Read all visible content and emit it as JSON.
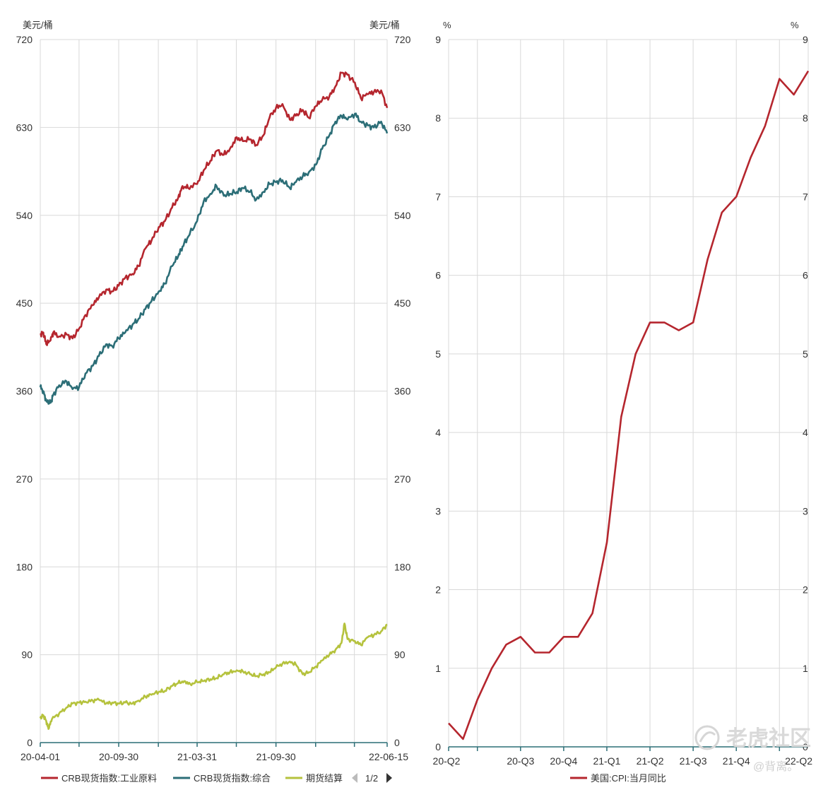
{
  "colors": {
    "industrial": "#b5262e",
    "composite": "#2c6e77",
    "futures": "#b5c23d",
    "cpi": "#b5262e",
    "grid": "#d9d9d9",
    "axis": "#2c6e77"
  },
  "pager": {
    "text": "1/2",
    "prev_icon": "triangle-left-icon",
    "next_icon": "triangle-right-icon"
  },
  "watermark": {
    "brand": "老虎社区",
    "handle": "@背离。"
  },
  "chart_data": [
    {
      "type": "line",
      "x_type": "date",
      "left_unit": "美元/桶",
      "right_unit": "美元/桶",
      "ylim": [
        0,
        720
      ],
      "y_ticks": [
        0,
        90,
        180,
        270,
        360,
        450,
        540,
        630,
        720
      ],
      "x_range": [
        "2020-04-01",
        "2022-06-15"
      ],
      "x_labels": [
        {
          "date": "2020-04-01",
          "label": "20-04-01"
        },
        {
          "date": "2020-09-30",
          "label": "20-09-30"
        },
        {
          "date": "2021-03-31",
          "label": "21-03-31"
        },
        {
          "date": "2021-09-30",
          "label": "21-09-30"
        },
        {
          "date": "2022-06-15",
          "label": "22-06-15"
        }
      ],
      "grid": true,
      "legend_position": "bottom",
      "series": [
        {
          "name": "CRB现货指数:工业原料",
          "color_key": "industrial",
          "points": [
            [
              "2020-04-01",
              418
            ],
            [
              "2020-04-08",
              420
            ],
            [
              "2020-04-15",
              408
            ],
            [
              "2020-04-25",
              412
            ],
            [
              "2020-05-01",
              420
            ],
            [
              "2020-05-15",
              416
            ],
            [
              "2020-06-01",
              418
            ],
            [
              "2020-06-15",
              414
            ],
            [
              "2020-06-30",
              424
            ],
            [
              "2020-07-15",
              438
            ],
            [
              "2020-08-01",
              448
            ],
            [
              "2020-08-15",
              456
            ],
            [
              "2020-09-01",
              464
            ],
            [
              "2020-09-15",
              462
            ],
            [
              "2020-09-30",
              468
            ],
            [
              "2020-10-15",
              476
            ],
            [
              "2020-11-01",
              480
            ],
            [
              "2020-11-15",
              488
            ],
            [
              "2020-12-01",
              506
            ],
            [
              "2020-12-15",
              514
            ],
            [
              "2021-01-01",
              528
            ],
            [
              "2021-01-15",
              534
            ],
            [
              "2021-02-01",
              548
            ],
            [
              "2021-02-15",
              558
            ],
            [
              "2021-02-25",
              570
            ],
            [
              "2021-03-10",
              568
            ],
            [
              "2021-03-31",
              572
            ],
            [
              "2021-04-15",
              586
            ],
            [
              "2021-05-01",
              596
            ],
            [
              "2021-05-15",
              606
            ],
            [
              "2021-06-01",
              602
            ],
            [
              "2021-06-15",
              608
            ],
            [
              "2021-07-01",
              620
            ],
            [
              "2021-07-15",
              616
            ],
            [
              "2021-08-01",
              618
            ],
            [
              "2021-08-15",
              612
            ],
            [
              "2021-09-01",
              622
            ],
            [
              "2021-09-15",
              640
            ],
            [
              "2021-09-30",
              650
            ],
            [
              "2021-10-15",
              654
            ],
            [
              "2021-11-01",
              638
            ],
            [
              "2021-11-15",
              642
            ],
            [
              "2021-12-01",
              648
            ],
            [
              "2021-12-15",
              640
            ],
            [
              "2022-01-01",
              652
            ],
            [
              "2022-01-15",
              658
            ],
            [
              "2022-02-01",
              662
            ],
            [
              "2022-02-15",
              672
            ],
            [
              "2022-03-01",
              686
            ],
            [
              "2022-03-15",
              684
            ],
            [
              "2022-04-01",
              676
            ],
            [
              "2022-04-15",
              660
            ],
            [
              "2022-05-01",
              664
            ],
            [
              "2022-05-15",
              666
            ],
            [
              "2022-06-01",
              668
            ],
            [
              "2022-06-15",
              650
            ]
          ]
        },
        {
          "name": "CRB现货指数:综合",
          "color_key": "composite",
          "points": [
            [
              "2020-04-01",
              364
            ],
            [
              "2020-04-08",
              360
            ],
            [
              "2020-04-15",
              350
            ],
            [
              "2020-04-25",
              348
            ],
            [
              "2020-05-01",
              356
            ],
            [
              "2020-05-15",
              366
            ],
            [
              "2020-06-01",
              370
            ],
            [
              "2020-06-15",
              362
            ],
            [
              "2020-06-30",
              364
            ],
            [
              "2020-07-15",
              378
            ],
            [
              "2020-08-01",
              386
            ],
            [
              "2020-08-15",
              396
            ],
            [
              "2020-09-01",
              408
            ],
            [
              "2020-09-15",
              406
            ],
            [
              "2020-09-30",
              414
            ],
            [
              "2020-10-15",
              420
            ],
            [
              "2020-11-01",
              428
            ],
            [
              "2020-11-15",
              434
            ],
            [
              "2020-12-01",
              444
            ],
            [
              "2020-12-15",
              452
            ],
            [
              "2021-01-01",
              462
            ],
            [
              "2021-01-15",
              470
            ],
            [
              "2021-02-01",
              488
            ],
            [
              "2021-02-15",
              498
            ],
            [
              "2021-02-25",
              508
            ],
            [
              "2021-03-10",
              518
            ],
            [
              "2021-03-31",
              534
            ],
            [
              "2021-04-15",
              554
            ],
            [
              "2021-05-01",
              562
            ],
            [
              "2021-05-15",
              570
            ],
            [
              "2021-06-01",
              560
            ],
            [
              "2021-06-15",
              562
            ],
            [
              "2021-07-01",
              564
            ],
            [
              "2021-07-15",
              568
            ],
            [
              "2021-08-01",
              564
            ],
            [
              "2021-08-15",
              556
            ],
            [
              "2021-09-01",
              564
            ],
            [
              "2021-09-15",
              572
            ],
            [
              "2021-09-30",
              574
            ],
            [
              "2021-10-15",
              576
            ],
            [
              "2021-11-01",
              568
            ],
            [
              "2021-11-15",
              574
            ],
            [
              "2021-12-01",
              580
            ],
            [
              "2021-12-15",
              584
            ],
            [
              "2022-01-01",
              592
            ],
            [
              "2022-01-15",
              608
            ],
            [
              "2022-02-01",
              622
            ],
            [
              "2022-02-15",
              636
            ],
            [
              "2022-03-01",
              642
            ],
            [
              "2022-03-15",
              638
            ],
            [
              "2022-04-01",
              644
            ],
            [
              "2022-04-15",
              636
            ],
            [
              "2022-05-01",
              632
            ],
            [
              "2022-05-15",
              630
            ],
            [
              "2022-06-01",
              636
            ],
            [
              "2022-06-15",
              624
            ]
          ]
        },
        {
          "name": "期货结算",
          "color_key": "futures",
          "points": [
            [
              "2020-04-01",
              25
            ],
            [
              "2020-04-08",
              28
            ],
            [
              "2020-04-15",
              22
            ],
            [
              "2020-04-20",
              14
            ],
            [
              "2020-04-28",
              24
            ],
            [
              "2020-05-15",
              30
            ],
            [
              "2020-06-01",
              36
            ],
            [
              "2020-06-15",
              40
            ],
            [
              "2020-07-01",
              41
            ],
            [
              "2020-07-15",
              42
            ],
            [
              "2020-08-01",
              43
            ],
            [
              "2020-08-15",
              44
            ],
            [
              "2020-09-01",
              40
            ],
            [
              "2020-09-15",
              41
            ],
            [
              "2020-09-30",
              40
            ],
            [
              "2020-10-15",
              41
            ],
            [
              "2020-11-01",
              40
            ],
            [
              "2020-11-15",
              43
            ],
            [
              "2020-12-01",
              47
            ],
            [
              "2020-12-15",
              49
            ],
            [
              "2021-01-01",
              52
            ],
            [
              "2021-01-15",
              53
            ],
            [
              "2021-02-01",
              58
            ],
            [
              "2021-02-15",
              61
            ],
            [
              "2021-03-01",
              63
            ],
            [
              "2021-03-15",
              60
            ],
            [
              "2021-03-31",
              62
            ],
            [
              "2021-04-15",
              63
            ],
            [
              "2021-05-01",
              65
            ],
            [
              "2021-05-15",
              66
            ],
            [
              "2021-06-01",
              70
            ],
            [
              "2021-06-15",
              72
            ],
            [
              "2021-07-01",
              74
            ],
            [
              "2021-07-15",
              73
            ],
            [
              "2021-08-01",
              70
            ],
            [
              "2021-08-15",
              68
            ],
            [
              "2021-09-01",
              70
            ],
            [
              "2021-09-15",
              72
            ],
            [
              "2021-09-30",
              77
            ],
            [
              "2021-10-15",
              81
            ],
            [
              "2021-11-01",
              83
            ],
            [
              "2021-11-15",
              80
            ],
            [
              "2021-12-01",
              70
            ],
            [
              "2021-12-15",
              72
            ],
            [
              "2022-01-01",
              78
            ],
            [
              "2022-01-15",
              84
            ],
            [
              "2022-02-01",
              90
            ],
            [
              "2022-02-15",
              95
            ],
            [
              "2022-03-01",
              102
            ],
            [
              "2022-03-08",
              122
            ],
            [
              "2022-03-15",
              106
            ],
            [
              "2022-04-01",
              104
            ],
            [
              "2022-04-15",
              100
            ],
            [
              "2022-05-01",
              108
            ],
            [
              "2022-05-15",
              110
            ],
            [
              "2022-06-01",
              114
            ],
            [
              "2022-06-15",
              121
            ]
          ]
        }
      ]
    },
    {
      "type": "line",
      "left_unit": "%",
      "right_unit": "%",
      "ylim": [
        0,
        9
      ],
      "y_ticks": [
        0,
        1,
        2,
        3,
        4,
        5,
        6,
        7,
        8,
        9
      ],
      "quarter_labels": [
        "20-Q2",
        "20-Q3",
        "20-Q4",
        "21-Q1",
        "21-Q2",
        "21-Q3",
        "21-Q4",
        "22-Q2"
      ],
      "grid": true,
      "legend_position": "bottom",
      "series": [
        {
          "name": "美国:CPI:当月同比",
          "color_key": "cpi",
          "x": [
            "2020-04",
            "2020-05",
            "2020-06",
            "2020-07",
            "2020-08",
            "2020-09",
            "2020-10",
            "2020-11",
            "2020-12",
            "2021-01",
            "2021-02",
            "2021-03",
            "2021-04",
            "2021-05",
            "2021-06",
            "2021-07",
            "2021-08",
            "2021-09",
            "2021-10",
            "2021-11",
            "2021-12",
            "2022-01",
            "2022-02",
            "2022-03",
            "2022-04",
            "2022-05"
          ],
          "values": [
            0.3,
            0.1,
            0.6,
            1.0,
            1.3,
            1.4,
            1.2,
            1.2,
            1.4,
            1.4,
            1.7,
            2.6,
            4.2,
            5.0,
            5.4,
            5.4,
            5.3,
            5.4,
            6.2,
            6.8,
            7.0,
            7.5,
            7.9,
            8.5,
            8.3,
            8.6
          ]
        }
      ]
    }
  ]
}
